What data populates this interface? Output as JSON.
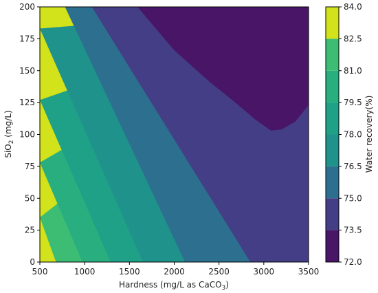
{
  "chart_data": {
    "type": "contourf",
    "xlabel": "Hardness (mg/L as CaCO",
    "xlabel_sub": "3",
    "xlabel_end": ")",
    "ylabel": "SiO",
    "ylabel_sub": "2",
    "ylabel_end": " (mg/L)",
    "xlim": [
      500,
      3500
    ],
    "ylim": [
      0,
      200
    ],
    "x_ticks": [
      "500",
      "1000",
      "1500",
      "2000",
      "2500",
      "3000",
      "3500"
    ],
    "y_ticks": [
      "0",
      "25",
      "50",
      "75",
      "100",
      "125",
      "150",
      "175",
      "200"
    ],
    "colorbar": {
      "label": "Water recovery(%)",
      "ticks": [
        "72.0",
        "73.5",
        "75.0",
        "76.5",
        "78.0",
        "79.5",
        "81.0",
        "82.5",
        "84.0"
      ],
      "levels": [
        {
          "range": [
            72.0,
            73.5
          ],
          "color": "#481567"
        },
        {
          "range": [
            73.5,
            75.0
          ],
          "color": "#433e85"
        },
        {
          "range": [
            75.0,
            76.5
          ],
          "color": "#2d6f8e"
        },
        {
          "range": [
            76.5,
            78.0
          ],
          "color": "#20928c"
        },
        {
          "range": [
            78.0,
            79.5
          ],
          "color": "#1fa187"
        },
        {
          "range": [
            79.5,
            81.0
          ],
          "color": "#29af7f"
        },
        {
          "range": [
            81.0,
            82.5
          ],
          "color": "#3dbc74"
        },
        {
          "range": [
            82.5,
            84.0
          ],
          "color": "#d2e21b"
        }
      ]
    },
    "contour_lines": [
      {
        "level": 73.5,
        "points": [
          [
            1590,
            200
          ],
          [
            2000,
            166
          ],
          [
            2400,
            141
          ],
          [
            2700,
            124
          ],
          [
            2900,
            112
          ],
          [
            3080,
            103
          ],
          [
            3200,
            104
          ],
          [
            3350,
            110
          ],
          [
            3500,
            123
          ]
        ]
      },
      {
        "level": 75.0,
        "points": [
          [
            1080,
            200
          ],
          [
            2850,
            0
          ]
        ]
      },
      {
        "level": 76.5,
        "points": [
          [
            780,
            200
          ],
          [
            2120,
            0
          ]
        ]
      },
      {
        "level": 78.0,
        "points": [
          [
            500,
            183
          ],
          [
            1650,
            0
          ]
        ]
      },
      {
        "level": 79.5,
        "points": [
          [
            500,
            127
          ],
          [
            1290,
            0
          ]
        ]
      },
      {
        "level": 81.0,
        "points": [
          [
            500,
            78
          ],
          [
            975,
            0
          ]
        ]
      },
      {
        "level": 82.5,
        "points": [
          [
            500,
            35
          ],
          [
            680,
            0
          ]
        ]
      }
    ]
  }
}
